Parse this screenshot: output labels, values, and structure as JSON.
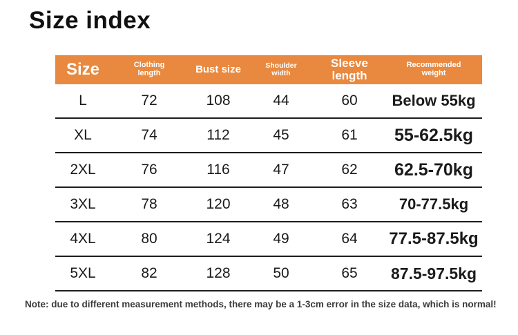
{
  "page": {
    "title": "Size index",
    "note": "Note: due to different measurement methods, there may be a 1-3cm error in the size data, which is normal!"
  },
  "colors": {
    "header_bg": "#E8893F",
    "header_text": "#FFFFFF",
    "body_text": "#1A1A1A",
    "row_divider": "#1C1C1C",
    "note_text": "#3A3A3A",
    "background": "#FFFFFF"
  },
  "table": {
    "columns": [
      {
        "key": "size",
        "label": "Size"
      },
      {
        "key": "clothing_length",
        "label": "Clothing length"
      },
      {
        "key": "bust_size",
        "label": "Bust size"
      },
      {
        "key": "shoulder_width",
        "label": "Shoulder width"
      },
      {
        "key": "sleeve_length",
        "label": "Sleeve length"
      },
      {
        "key": "recommended_weight",
        "label": "Recommended weight"
      }
    ],
    "rows": [
      {
        "size": "L",
        "clothing_length": "72",
        "bust_size": "108",
        "shoulder_width": "44",
        "sleeve_length": "60",
        "recommended_weight": "Below 55kg"
      },
      {
        "size": "XL",
        "clothing_length": "74",
        "bust_size": "112",
        "shoulder_width": "45",
        "sleeve_length": "61",
        "recommended_weight": "55-62.5kg"
      },
      {
        "size": "2XL",
        "clothing_length": "76",
        "bust_size": "116",
        "shoulder_width": "47",
        "sleeve_length": "62",
        "recommended_weight": "62.5-70kg"
      },
      {
        "size": "3XL",
        "clothing_length": "78",
        "bust_size": "120",
        "shoulder_width": "48",
        "sleeve_length": "63",
        "recommended_weight": "70-77.5kg"
      },
      {
        "size": "4XL",
        "clothing_length": "80",
        "bust_size": "124",
        "shoulder_width": "49",
        "sleeve_length": "64",
        "recommended_weight": "77.5-87.5kg"
      },
      {
        "size": "5XL",
        "clothing_length": "82",
        "bust_size": "128",
        "shoulder_width": "50",
        "sleeve_length": "65",
        "recommended_weight": "87.5-97.5kg"
      }
    ]
  },
  "chart_data": {
    "type": "table",
    "title": "Size index",
    "columns": [
      "Size",
      "Clothing length",
      "Bust size",
      "Shoulder width",
      "Sleeve length",
      "Recommended weight"
    ],
    "rows": [
      [
        "L",
        72,
        108,
        44,
        60,
        "Below 55kg"
      ],
      [
        "XL",
        74,
        112,
        45,
        61,
        "55-62.5kg"
      ],
      [
        "2XL",
        76,
        116,
        47,
        62,
        "62.5-70kg"
      ],
      [
        "3XL",
        78,
        120,
        48,
        63,
        "70-77.5kg"
      ],
      [
        "4XL",
        80,
        124,
        49,
        64,
        "77.5-87.5kg"
      ],
      [
        "5XL",
        82,
        128,
        50,
        65,
        "87.5-97.5kg"
      ]
    ],
    "units": "cm",
    "note": "Note: due to different measurement methods, there may be a 1-3cm error in the size data, which is normal!"
  }
}
